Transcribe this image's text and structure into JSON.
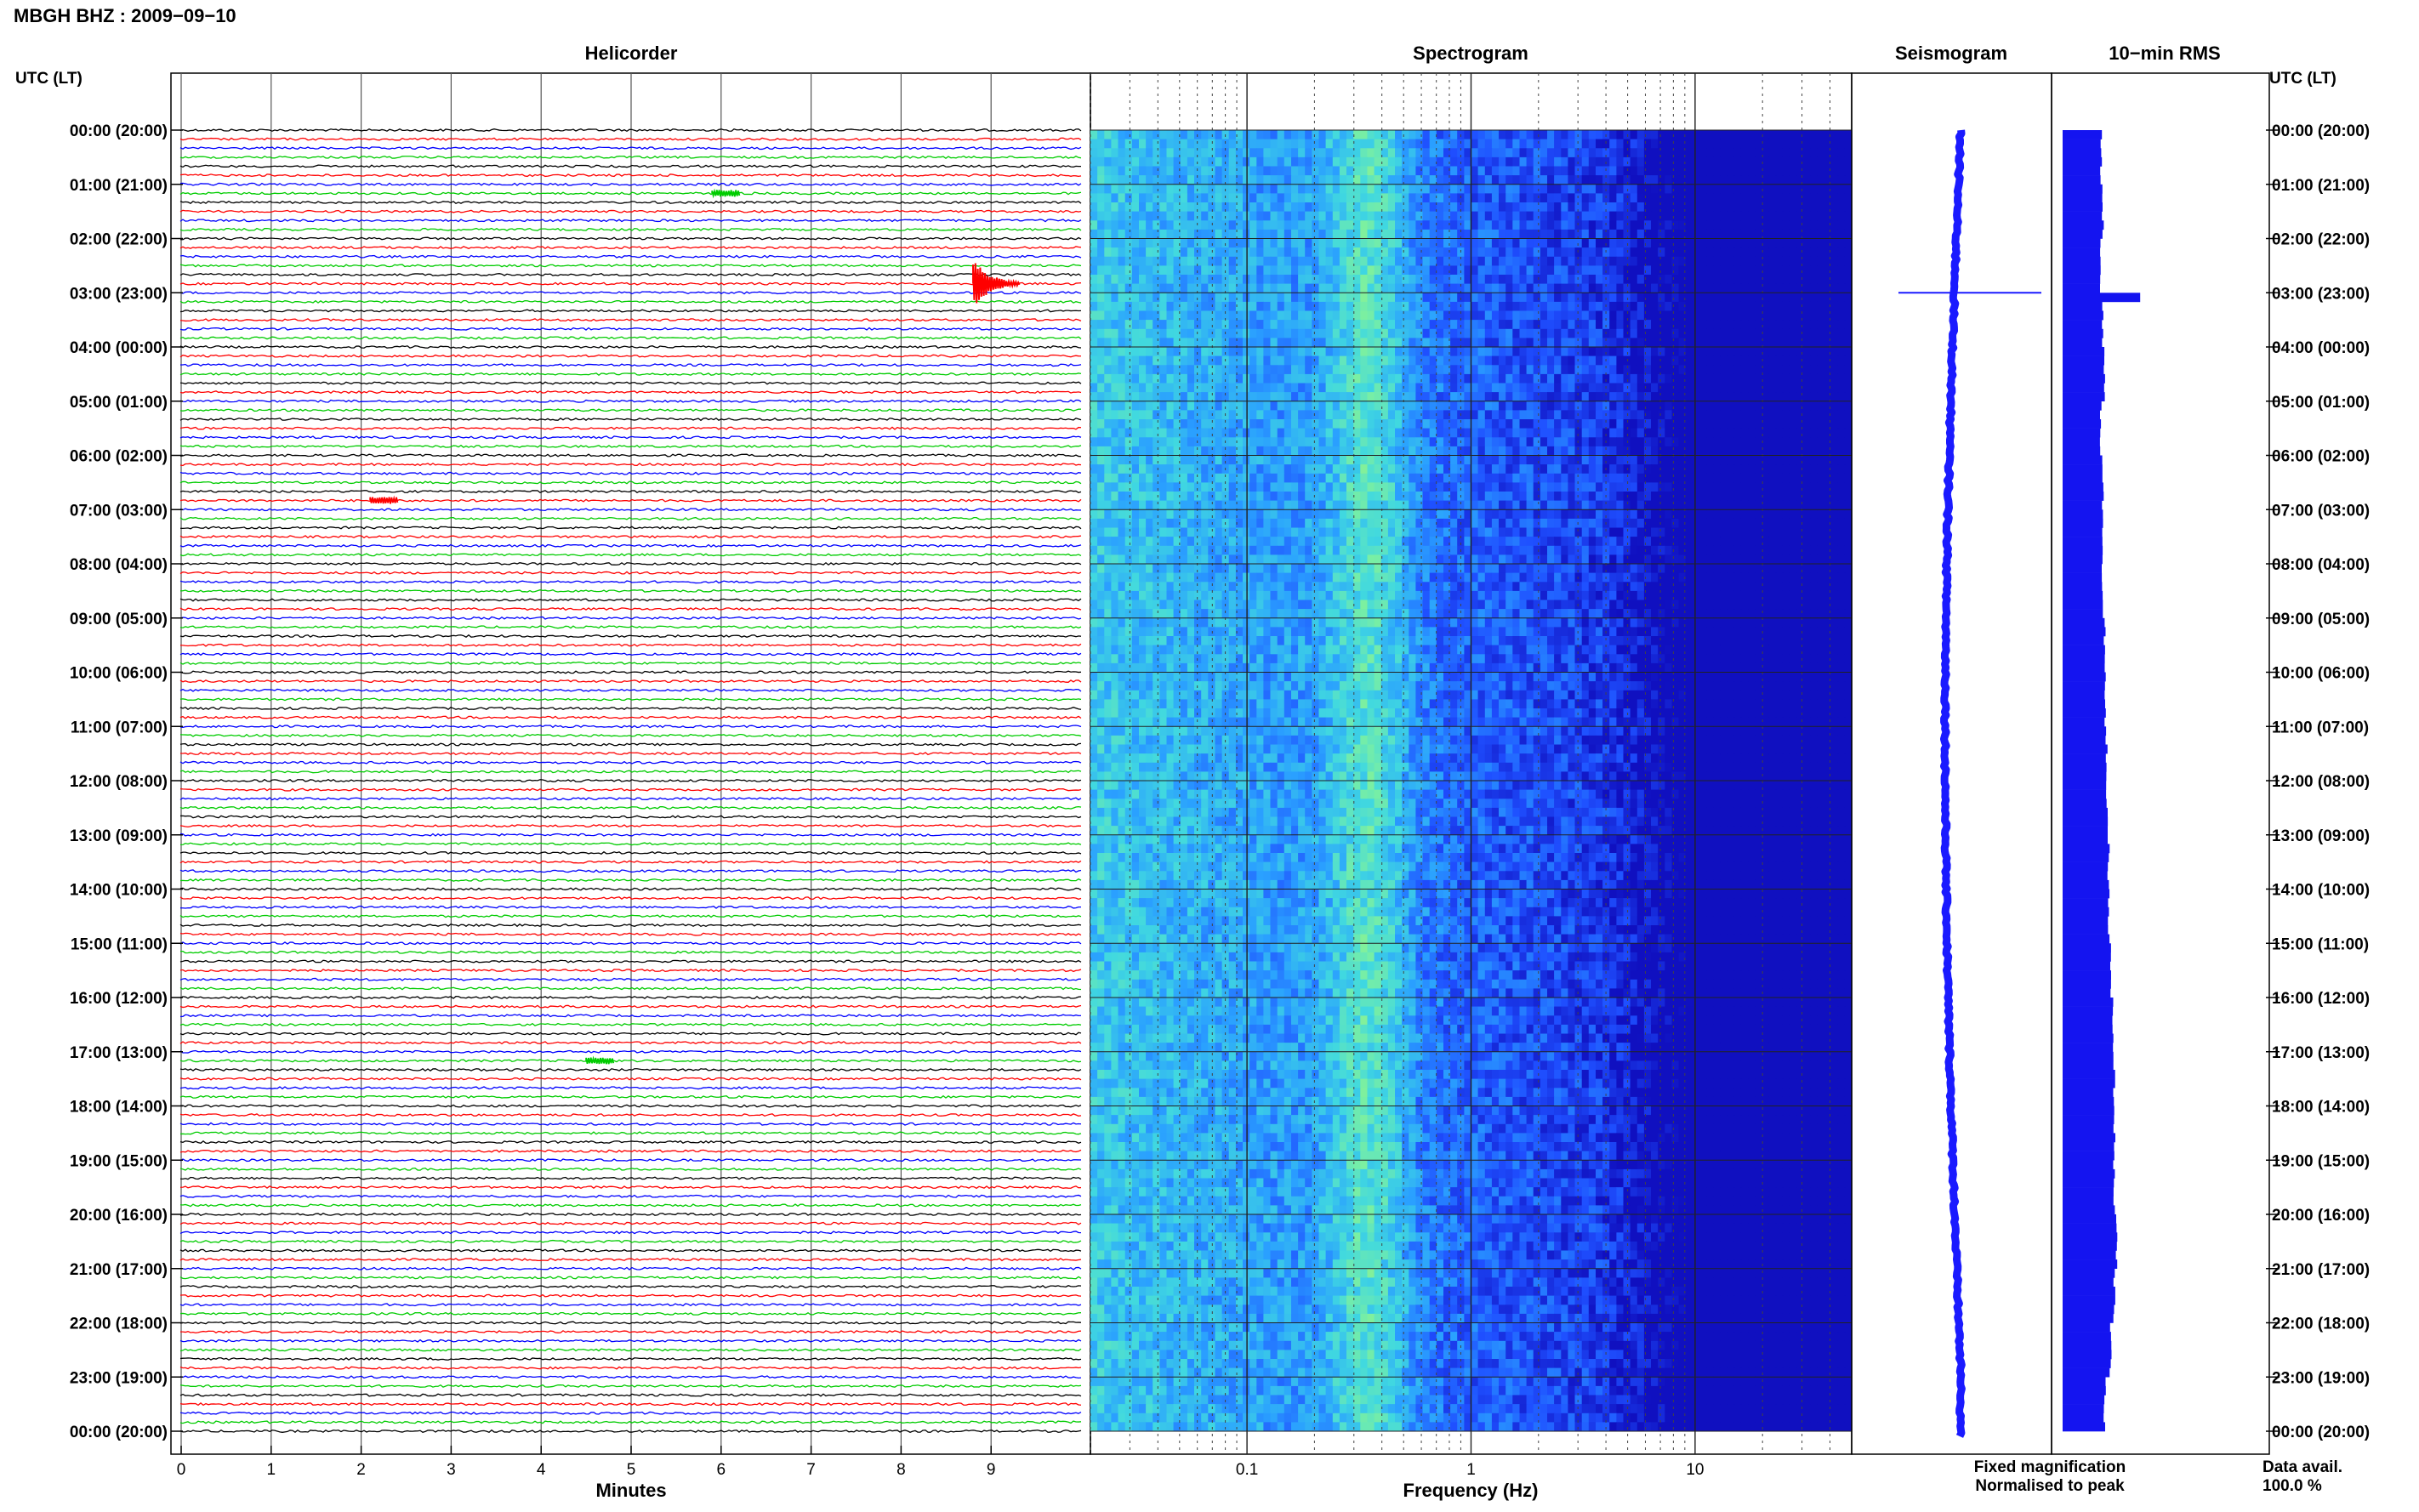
{
  "station_title": "MBGH BHZ : 2009−09−10",
  "utc_lt_label": "UTC (LT)",
  "panels": {
    "helicorder": "Helicorder",
    "spectrogram": "Spectrogram",
    "seismogram": "Seismogram",
    "rms": "10−min RMS"
  },
  "time_labels": [
    "00:00 (20:00)",
    "01:00 (21:00)",
    "02:00 (22:00)",
    "03:00 (23:00)",
    "04:00 (00:00)",
    "05:00 (01:00)",
    "06:00 (02:00)",
    "07:00 (03:00)",
    "08:00 (04:00)",
    "09:00 (05:00)",
    "10:00 (06:00)",
    "11:00 (07:00)",
    "12:00 (08:00)",
    "13:00 (09:00)",
    "14:00 (10:00)",
    "15:00 (11:00)",
    "16:00 (12:00)",
    "17:00 (13:00)",
    "18:00 (14:00)",
    "19:00 (15:00)",
    "20:00 (16:00)",
    "21:00 (17:00)",
    "22:00 (18:00)",
    "23:00 (19:00)",
    "00:00 (20:00)"
  ],
  "legend": {
    "fixed": "Fixed magnification",
    "normalised": "Normalised to peak",
    "fixed_color": "#0000ff",
    "normalised_color": "#ff0000"
  },
  "data_avail_label": "Data avail.",
  "data_avail_value": "100.0 %",
  "colors": {
    "trace_cycle": [
      "#000000",
      "#ff0000",
      "#0000ff",
      "#00cc00"
    ],
    "seismogram": "#1a1aff",
    "rms_bar": "#1414f0"
  },
  "chart_data": [
    {
      "type": "line",
      "title": "Helicorder",
      "xlabel": "Minutes",
      "x_ticks": [
        0,
        1,
        2,
        3,
        4,
        5,
        6,
        7,
        8,
        9
      ],
      "xlim": [
        0,
        10
      ],
      "rows_per_hour": 6,
      "total_rows": 144,
      "events": [
        {
          "time": "01:10",
          "minute": 5.9,
          "note": "small event"
        },
        {
          "time": "02:50",
          "minute": 8.8,
          "note": "large event"
        },
        {
          "time": "06:50",
          "minute": 2.1,
          "note": "small event"
        },
        {
          "time": "17:10",
          "minute": 4.5,
          "note": "small event"
        }
      ]
    },
    {
      "type": "heatmap",
      "title": "Spectrogram",
      "xlabel": "Frequency (Hz)",
      "x_scale": "log",
      "x_ticks": [
        0.1,
        1,
        10
      ],
      "xlim": [
        0.02,
        50
      ],
      "colormap": [
        "#1010c0",
        "#1f4fff",
        "#2aa0ff",
        "#40d8e0",
        "#7cf0a0",
        "#e8f040"
      ],
      "peak_frequency_hz": 0.35
    },
    {
      "type": "line",
      "title": "Seismogram",
      "series": [
        {
          "name": "Fixed magnification",
          "orientation": "vertical",
          "spike_at": "03:00"
        }
      ]
    },
    {
      "type": "bar",
      "title": "10−min RMS",
      "orientation": "horizontal",
      "categories": [
        "00:00",
        "01:00",
        "02:00",
        "03:00",
        "04:00",
        "05:00",
        "06:00",
        "07:00",
        "08:00",
        "09:00",
        "10:00",
        "11:00",
        "12:00",
        "13:00",
        "14:00",
        "15:00",
        "16:00",
        "17:00",
        "18:00",
        "19:00",
        "20:00",
        "21:00",
        "22:00",
        "23:00"
      ],
      "values": [
        1.0,
        1.05,
        1.0,
        2.0,
        1.1,
        1.0,
        1.05,
        1.05,
        1.05,
        1.1,
        1.1,
        1.15,
        1.15,
        1.2,
        1.2,
        1.25,
        1.3,
        1.35,
        1.35,
        1.35,
        1.4,
        1.35,
        1.25,
        1.1
      ],
      "spike": {
        "time": "03:00",
        "value": 2.0
      }
    }
  ]
}
